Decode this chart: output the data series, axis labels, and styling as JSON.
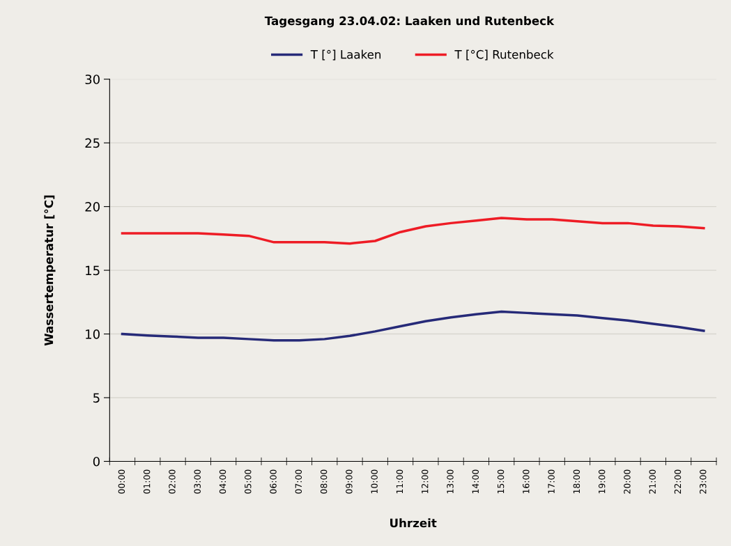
{
  "chart_data": {
    "type": "line",
    "title": "Tagesgang 23.04.02: Laaken und Rutenbeck",
    "xlabel": "Uhrzeit",
    "ylabel": "Wassertemperatur [°C]",
    "categories": [
      "00:00",
      "01:00",
      "02:00",
      "03:00",
      "04:00",
      "05:00",
      "06:00",
      "07:00",
      "08:00",
      "09:00",
      "10:00",
      "11:00",
      "12:00",
      "13:00",
      "14:00",
      "15:00",
      "16:00",
      "17:00",
      "18:00",
      "19:00",
      "20:00",
      "21:00",
      "22:00",
      "23:00"
    ],
    "series": [
      {
        "name": "T [°] Laaken",
        "color": "#262a78",
        "values": [
          10.0,
          9.88,
          9.8,
          9.7,
          9.7,
          9.6,
          9.5,
          9.5,
          9.6,
          9.85,
          10.2,
          10.6,
          11.0,
          11.3,
          11.55,
          11.75,
          11.65,
          11.55,
          11.45,
          11.25,
          11.05,
          10.8,
          10.55,
          10.25
        ]
      },
      {
        "name": "T [°C] Rutenbeck",
        "color": "#ee1c25",
        "values": [
          17.9,
          17.9,
          17.9,
          17.9,
          17.8,
          17.7,
          17.2,
          17.2,
          17.2,
          17.1,
          17.3,
          18.0,
          18.45,
          18.7,
          18.9,
          19.1,
          19.0,
          19.0,
          18.85,
          18.7,
          18.7,
          18.5,
          18.45,
          18.3
        ]
      }
    ],
    "ylim": [
      0,
      30
    ],
    "yticks": [
      0,
      5,
      10,
      15,
      20,
      25,
      30
    ],
    "grid": "y",
    "legend": "top"
  }
}
